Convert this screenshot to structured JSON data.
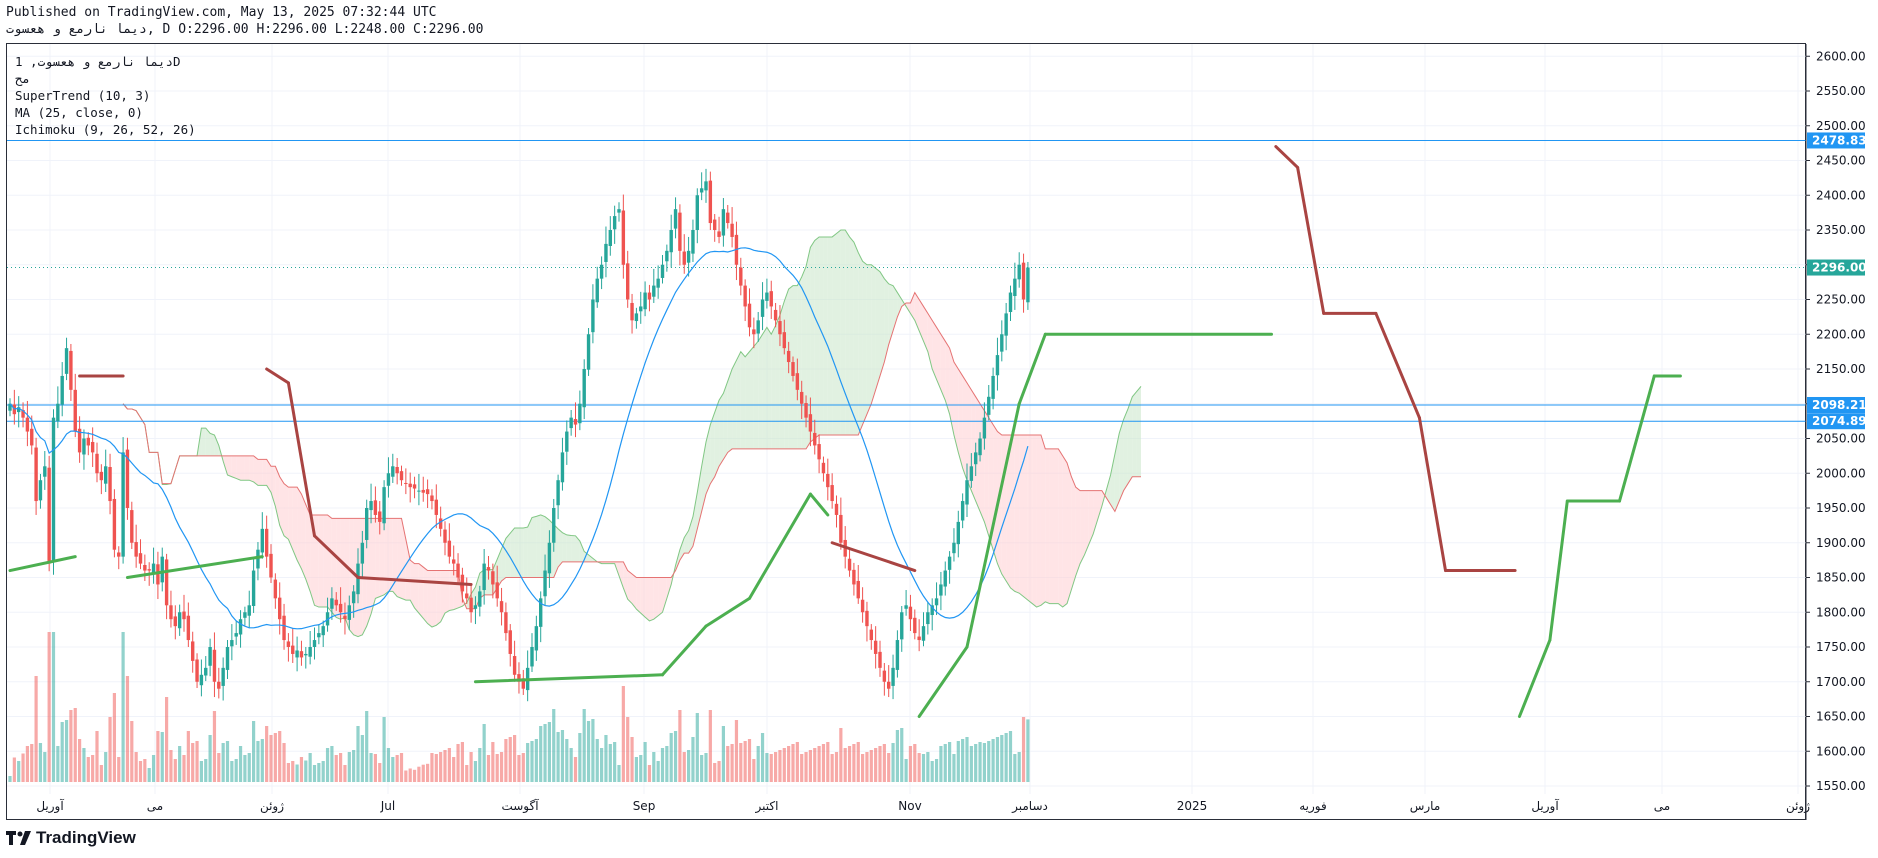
{
  "header": {
    "published": "Published on TradingView.com, May 13, 2025 07:32:44 UTC",
    "ohlc_line": "دیما نارمع و هعسوت, D O:2296.00 H:2296.00 L:2248.00 C:2296.00"
  },
  "legend": {
    "symbol": "دیما نارمع و هعسوت, 1D",
    "exchange": "مح",
    "indicator_1": "SuperTrend (10, 3)",
    "indicator_2": "MA (25, close, 0)",
    "indicator_3": "Ichimoku (9, 26, 52, 26)"
  },
  "brand": {
    "name": "TradingView"
  },
  "colors": {
    "up": "#26a69a",
    "down": "#ef5350",
    "supertrend_up": "#4caf50",
    "supertrend_down": "#a94442",
    "ma": "#2196f3",
    "hline": "#2196f3",
    "cloud_bull": "#c8e6c9",
    "cloud_bear": "#ffcdd2",
    "last_price": "#26a69a"
  },
  "chart_data": {
    "type": "candlestick",
    "y_axis": {
      "range": [
        1540,
        2620
      ],
      "ticks": [
        1550,
        1600,
        1650,
        1700,
        1750,
        1800,
        1850,
        1900,
        1950,
        2000,
        2050,
        2100,
        2150,
        2200,
        2250,
        2300,
        2350,
        2400,
        2450,
        2500,
        2550,
        2600
      ]
    },
    "x_axis": {
      "labels": [
        "آوریل",
        "می",
        "ژوئن",
        "Jul",
        "آگوست",
        "Sep",
        "اکتبر",
        "Nov",
        "دسامبر",
        "2025",
        "فوریه",
        "مارس",
        "آوریل",
        "می",
        "ژوئن"
      ]
    },
    "price_labels": [
      {
        "value": 2478.83,
        "text": "2478.83"
      },
      {
        "value": 2296.0,
        "text": "2296.00"
      },
      {
        "value": 2098.21,
        "text": "2098.21"
      },
      {
        "value": 2074.89,
        "text": "2074.89"
      }
    ],
    "horizontal_lines": [
      2478.83,
      2098.21,
      2074.89
    ],
    "last_price": 2296.0,
    "closes": [
      2100,
      2085,
      2095,
      2080,
      2060,
      2040,
      1960,
      1990,
      2010,
      1870,
      2080,
      2100,
      2140,
      2180,
      2120,
      2060,
      2030,
      2050,
      2040,
      2030,
      2000,
      1990,
      2010,
      1960,
      1890,
      1880,
      2030,
      1950,
      1900,
      1880,
      1870,
      1860,
      1860,
      1870,
      1840,
      1880,
      1810,
      1790,
      1780,
      1800,
      1790,
      1760,
      1730,
      1700,
      1710,
      1720,
      1750,
      1700,
      1690,
      1720,
      1750,
      1760,
      1770,
      1790,
      1800,
      1810,
      1860,
      1890,
      1920,
      1880,
      1850,
      1820,
      1790,
      1760,
      1750,
      1740,
      1745,
      1735,
      1740,
      1750,
      1760,
      1770,
      1780,
      1800,
      1820,
      1810,
      1800,
      1790,
      1810,
      1830,
      1870,
      1900,
      1950,
      1960,
      1940,
      1930,
      1980,
      2000,
      2010,
      2000,
      1990,
      1985,
      1980,
      1978,
      1975,
      1972,
      1970,
      1960,
      1940,
      1920,
      1900,
      1880,
      1870,
      1850,
      1830,
      1820,
      1800,
      1810,
      1830,
      1870,
      1860,
      1840,
      1820,
      1800,
      1770,
      1740,
      1710,
      1700,
      1690,
      1720,
      1750,
      1780,
      1820,
      1860,
      1900,
      1950,
      1990,
      2030,
      2060,
      2080,
      2070,
      2100,
      2150,
      2200,
      2250,
      2280,
      2300,
      2330,
      2350,
      2370,
      2380,
      2300,
      2250,
      2220,
      2230,
      2240,
      2260,
      2250,
      2270,
      2280,
      2300,
      2320,
      2350,
      2380,
      2320,
      2300,
      2320,
      2350,
      2400,
      2410,
      2420,
      2360,
      2350,
      2340,
      2380,
      2360,
      2340,
      2300,
      2270,
      2240,
      2210,
      2200,
      2220,
      2250,
      2260,
      2240,
      2220,
      2200,
      2180,
      2160,
      2140,
      2120,
      2100,
      2080,
      2060,
      2040,
      2020,
      2000,
      1980,
      1960,
      1940,
      1900,
      1880,
      1860,
      1840,
      1820,
      1800,
      1780,
      1760,
      1740,
      1720,
      1700,
      1690,
      1720,
      1760,
      1800,
      1810,
      1790,
      1770,
      1760,
      1780,
      1800,
      1810,
      1820,
      1840,
      1860,
      1880,
      1900,
      1930,
      1960,
      1990,
      2010,
      2030,
      2050,
      2080,
      2110,
      2140,
      2170,
      2200,
      2230,
      2260,
      2280,
      2300,
      2250,
      2296
    ],
    "supertrend": [
      {
        "x": 0,
        "y": 1860,
        "side": "up"
      },
      {
        "x": 15,
        "y": 1880,
        "side": "up"
      },
      {
        "x": 16,
        "y": 2140,
        "side": "down"
      },
      {
        "x": 26,
        "y": 2140,
        "side": "down"
      },
      {
        "x": 27,
        "y": 1850,
        "side": "up"
      },
      {
        "x": 58,
        "y": 1880,
        "side": "up"
      },
      {
        "x": 59,
        "y": 2150,
        "side": "down"
      },
      {
        "x": 64,
        "y": 2130,
        "side": "down"
      },
      {
        "x": 70,
        "y": 1910,
        "side": "down"
      },
      {
        "x": 80,
        "y": 1850,
        "side": "down"
      },
      {
        "x": 106,
        "y": 1840,
        "side": "down"
      },
      {
        "x": 107,
        "y": 1700,
        "side": "up"
      },
      {
        "x": 150,
        "y": 1710,
        "side": "up"
      },
      {
        "x": 160,
        "y": 1780,
        "side": "up"
      },
      {
        "x": 170,
        "y": 1820,
        "side": "up"
      },
      {
        "x": 184,
        "y": 1970,
        "side": "up"
      },
      {
        "x": 188,
        "y": 1940,
        "side": "up"
      },
      {
        "x": 189,
        "y": 1900,
        "side": "down"
      },
      {
        "x": 208,
        "y": 1860,
        "side": "down"
      },
      {
        "x": 209,
        "y": 1650,
        "side": "up"
      },
      {
        "x": 220,
        "y": 1750,
        "side": "up"
      },
      {
        "x": 232,
        "y": 2100,
        "side": "up"
      },
      {
        "x": 238,
        "y": 2200,
        "side": "up"
      },
      {
        "x": 290,
        "y": 2200,
        "side": "up"
      },
      {
        "x": 291,
        "y": 2470,
        "side": "down"
      },
      {
        "x": 296,
        "y": 2440,
        "side": "down"
      },
      {
        "x": 302,
        "y": 2230,
        "side": "down"
      },
      {
        "x": 314,
        "y": 2230,
        "side": "down"
      },
      {
        "x": 324,
        "y": 2080,
        "side": "down"
      },
      {
        "x": 330,
        "y": 1860,
        "side": "down"
      },
      {
        "x": 346,
        "y": 1860,
        "side": "down"
      },
      {
        "x": 347,
        "y": 1650,
        "side": "up"
      },
      {
        "x": 354,
        "y": 1760,
        "side": "up"
      },
      {
        "x": 358,
        "y": 1960,
        "side": "up"
      },
      {
        "x": 370,
        "y": 1960,
        "side": "up"
      },
      {
        "x": 378,
        "y": 2140,
        "side": "up"
      },
      {
        "x": 384,
        "y": 2140,
        "side": "up"
      }
    ]
  }
}
